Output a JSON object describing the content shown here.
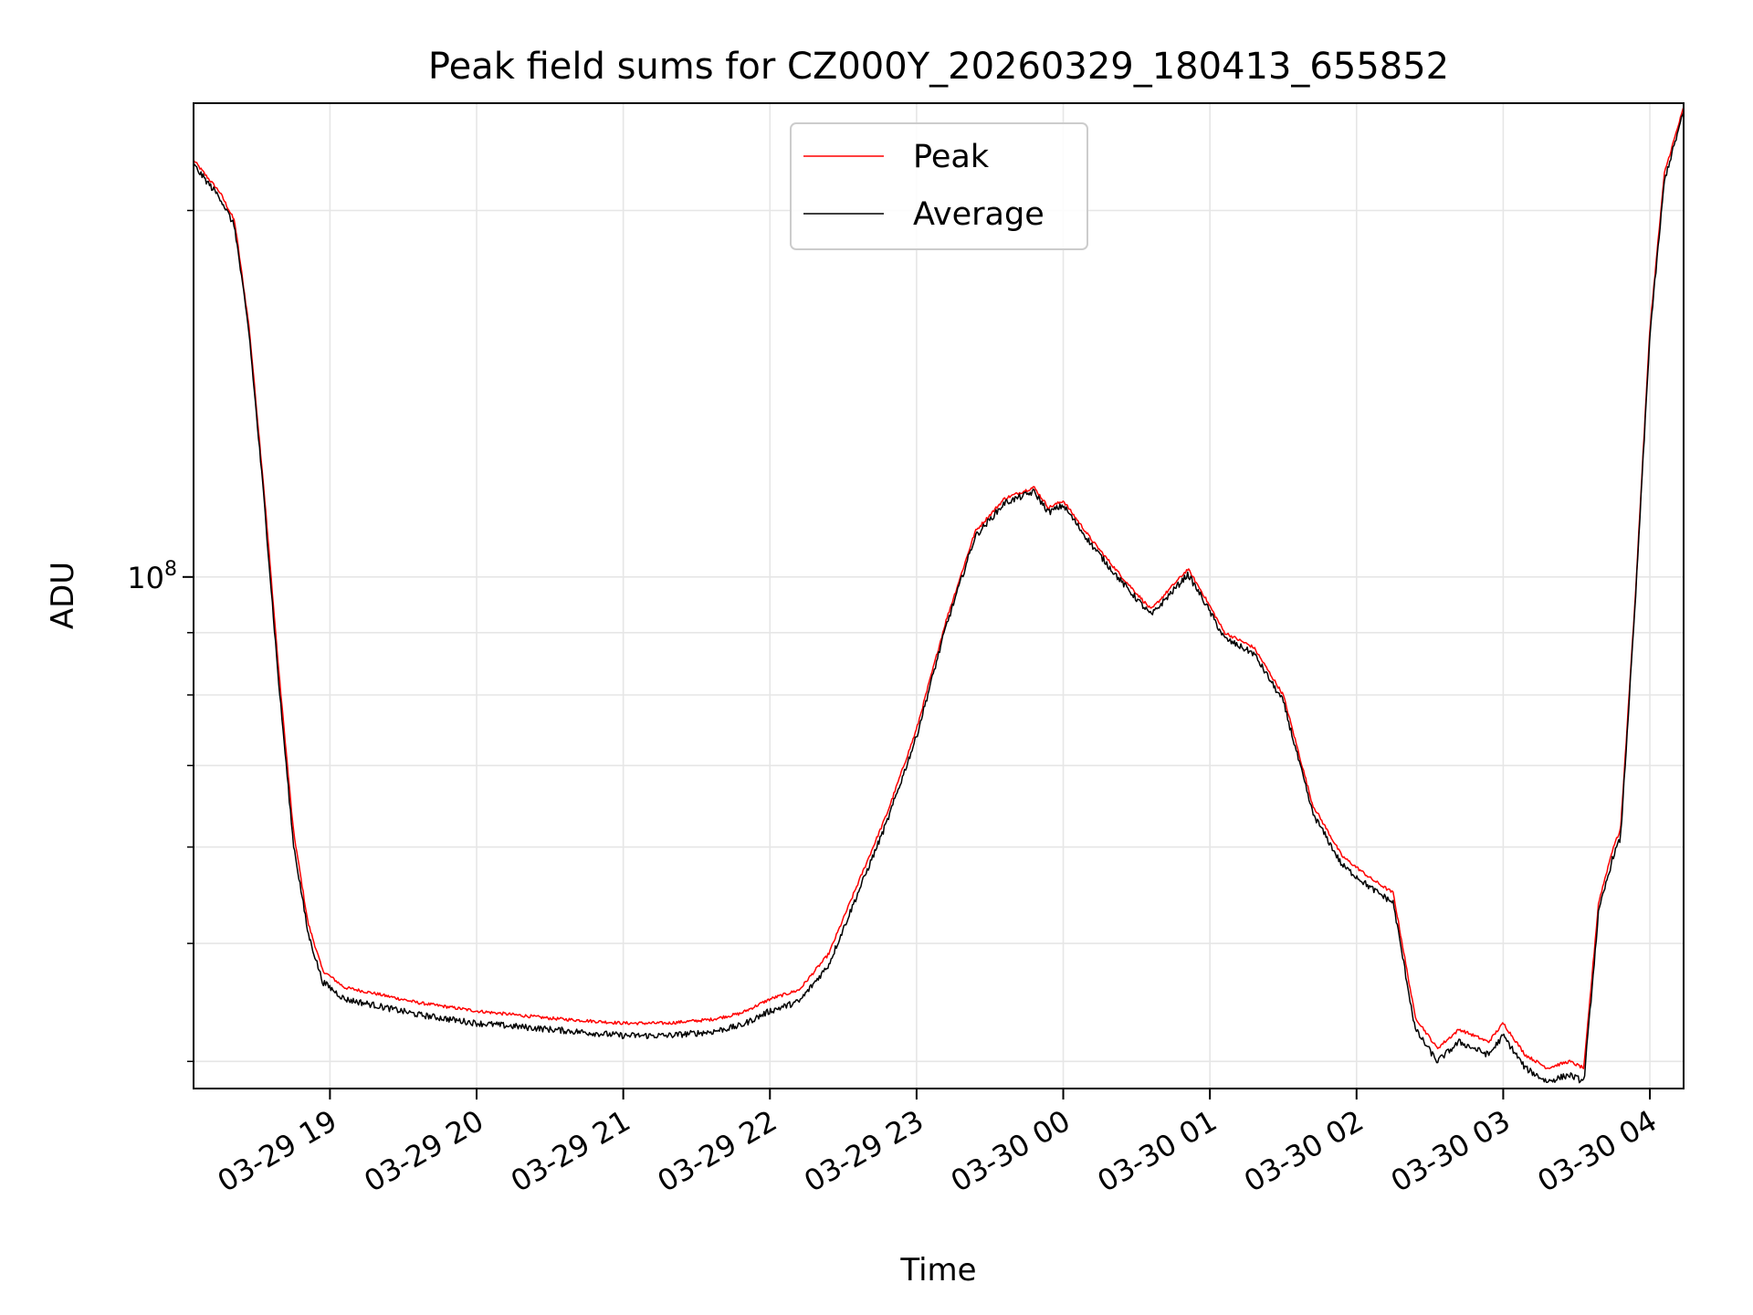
{
  "chart_data": {
    "type": "line",
    "title": "Peak field sums for CZ000Y_20260329_180413_655852",
    "xlabel": "Time",
    "ylabel": "ADU",
    "yscale": "log",
    "grid": true,
    "legend_position": "upper center",
    "x_unit": "hours since 03-29 18:00",
    "xlim": [
      0.07,
      10.23
    ],
    "ylim": [
      38000000,
      245000000
    ],
    "x_ticks": [
      {
        "value": 1,
        "label": "03-29 19"
      },
      {
        "value": 2,
        "label": "03-29 20"
      },
      {
        "value": 3,
        "label": "03-29 21"
      },
      {
        "value": 4,
        "label": "03-29 22"
      },
      {
        "value": 5,
        "label": "03-29 23"
      },
      {
        "value": 6,
        "label": "03-30 00"
      },
      {
        "value": 7,
        "label": "03-30 01"
      },
      {
        "value": 8,
        "label": "03-30 02"
      },
      {
        "value": 9,
        "label": "03-30 03"
      },
      {
        "value": 10,
        "label": "03-30 04"
      }
    ],
    "y_major_ticks": [
      {
        "value": 100000000,
        "base": "10",
        "exp": "8"
      }
    ],
    "y_minor_ticks": [
      40000000,
      50000000,
      60000000,
      70000000,
      80000000,
      90000000,
      200000000
    ],
    "x": [
      0.07,
      0.15,
      0.25,
      0.35,
      0.45,
      0.55,
      0.65,
      0.75,
      0.85,
      0.95,
      1.1,
      1.3,
      1.6,
      2.0,
      2.5,
      3.0,
      3.3,
      3.6,
      3.8,
      4.0,
      4.2,
      4.4,
      4.6,
      4.8,
      5.0,
      5.2,
      5.4,
      5.6,
      5.8,
      5.9,
      6.0,
      6.2,
      6.4,
      6.6,
      6.7,
      6.85,
      6.95,
      7.1,
      7.3,
      7.5,
      7.7,
      7.9,
      8.1,
      8.25,
      8.4,
      8.55,
      8.7,
      8.8,
      8.9,
      9.0,
      9.15,
      9.3,
      9.45,
      9.55,
      9.65,
      9.75,
      9.8,
      9.9,
      10.0,
      10.1,
      10.23
    ],
    "series": [
      {
        "name": "Peak",
        "color": "#ff0000",
        "values": [
          220000000,
          214000000,
          207000000,
          196000000,
          160000000,
          118000000,
          84000000,
          62000000,
          52000000,
          47500000,
          46000000,
          45500000,
          44700000,
          44000000,
          43400000,
          43000000,
          43000000,
          43300000,
          43800000,
          45000000,
          45800000,
          49000000,
          56000000,
          64000000,
          75000000,
          92000000,
          109000000,
          116000000,
          118500000,
          114000000,
          115500000,
          107000000,
          100000000,
          94000000,
          97000000,
          101500000,
          97000000,
          90000000,
          87500000,
          80000000,
          65000000,
          59000000,
          56500000,
          55000000,
          43500000,
          41000000,
          42500000,
          42000000,
          41500000,
          43000000,
          40500000,
          39500000,
          40000000,
          39500000,
          54000000,
          60000000,
          62000000,
          96000000,
          160000000,
          215000000,
          243000000
        ]
      },
      {
        "name": "Average",
        "color": "#000000",
        "values": [
          218000000,
          212000000,
          205000000,
          194000000,
          158000000,
          116000000,
          82000000,
          60500000,
          51000000,
          46500000,
          45000000,
          44500000,
          43700000,
          43000000,
          42500000,
          42000000,
          42000000,
          42300000,
          42800000,
          44000000,
          44800000,
          48000000,
          55000000,
          63000000,
          74000000,
          91000000,
          108000000,
          115000000,
          117500000,
          113000000,
          114500000,
          106000000,
          99000000,
          93000000,
          96000000,
          100500000,
          96000000,
          89000000,
          86500000,
          79000000,
          64000000,
          58000000,
          55500000,
          54000000,
          42500000,
          40000000,
          41500000,
          41000000,
          40500000,
          42000000,
          39500000,
          38500000,
          39000000,
          38500000,
          53000000,
          59000000,
          61000000,
          95000000,
          158000000,
          212000000,
          241000000
        ]
      }
    ]
  }
}
